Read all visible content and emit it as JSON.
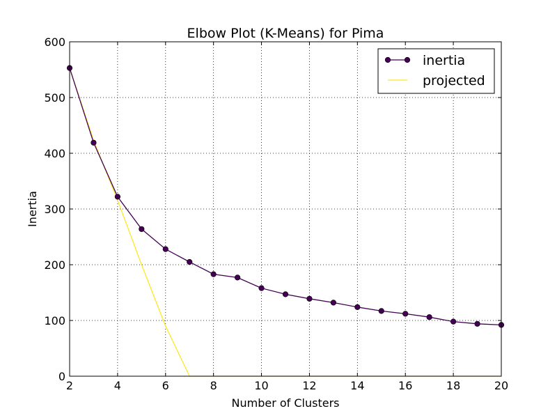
{
  "chart_data": {
    "type": "line",
    "title": "Elbow Plot (K-Means) for Pima",
    "xlabel": "Number of Clusters",
    "ylabel": "Inertia",
    "xlim": [
      2,
      20
    ],
    "ylim": [
      0,
      600
    ],
    "x_ticks": [
      2,
      4,
      6,
      8,
      10,
      12,
      14,
      16,
      18,
      20
    ],
    "y_ticks": [
      0,
      100,
      200,
      300,
      400,
      500,
      600
    ],
    "grid": true,
    "legend_position": "top-right",
    "series": [
      {
        "name": "inertia",
        "color": "#440154",
        "marker": "circle",
        "x": [
          2,
          3,
          4,
          5,
          6,
          7,
          8,
          9,
          10,
          11,
          12,
          13,
          14,
          15,
          16,
          17,
          18,
          19,
          20
        ],
        "y": [
          553,
          419,
          322,
          264,
          228,
          205,
          183,
          177,
          158,
          147,
          139,
          132,
          124,
          117,
          112,
          106,
          98,
          94,
          92
        ]
      },
      {
        "name": "projected",
        "color": "#fde725",
        "marker": "none",
        "x": [
          2,
          3,
          4,
          5,
          6,
          7,
          20
        ],
        "y": [
          553,
          423,
          316,
          200,
          90,
          0,
          0
        ]
      }
    ]
  }
}
